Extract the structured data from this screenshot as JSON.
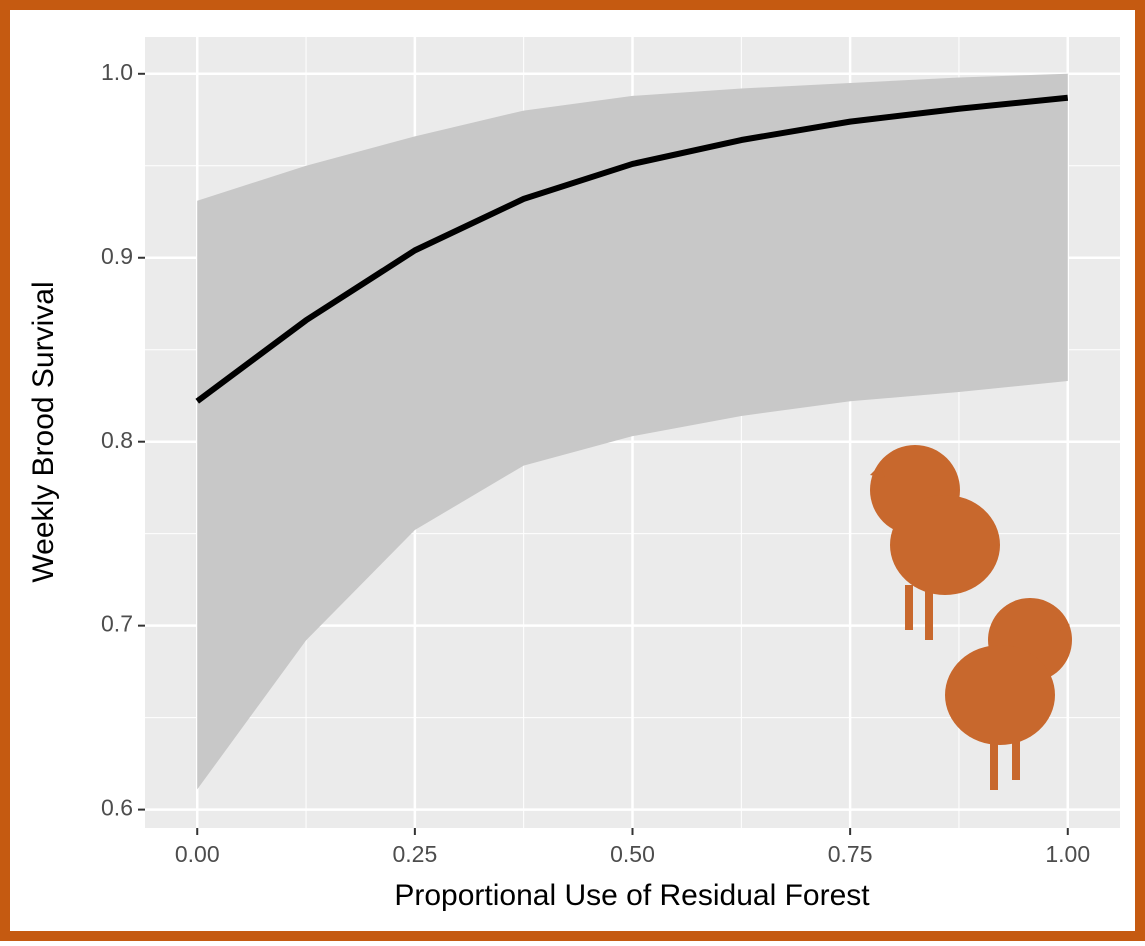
{
  "chart_data": {
    "type": "line",
    "x_label": "Proportional Use of Residual Forest",
    "y_label": "Weekly Brood Survival",
    "x": [
      0,
      0.125,
      0.25,
      0.375,
      0.5,
      0.625,
      0.75,
      0.875,
      1.0
    ],
    "series": [
      {
        "color": "#000000",
        "values": [
          0.822,
          0.866,
          0.904,
          0.932,
          0.951,
          0.964,
          0.974,
          0.981,
          0.987
        ]
      }
    ],
    "band": {
      "color": "#c8c8c8",
      "lower": [
        0.611,
        0.692,
        0.752,
        0.787,
        0.803,
        0.814,
        0.822,
        0.827,
        0.833
      ],
      "upper": [
        0.931,
        0.95,
        0.966,
        0.98,
        0.988,
        0.992,
        0.995,
        0.998,
        1.0
      ]
    },
    "xlim": [
      -0.06,
      1.06
    ],
    "ylim": [
      0.59,
      1.02
    ],
    "xticks": [
      {
        "value": 0,
        "label": "0.00"
      },
      {
        "value": 0.25,
        "label": "0.25"
      },
      {
        "value": 0.5,
        "label": "0.50"
      },
      {
        "value": 0.75,
        "label": "0.75"
      },
      {
        "value": 1,
        "label": "1.00"
      }
    ],
    "yticks": [
      0.6,
      0.7,
      0.8,
      0.9,
      {
        "value": 1,
        "label": "1.0"
      }
    ],
    "grid": true
  }
}
